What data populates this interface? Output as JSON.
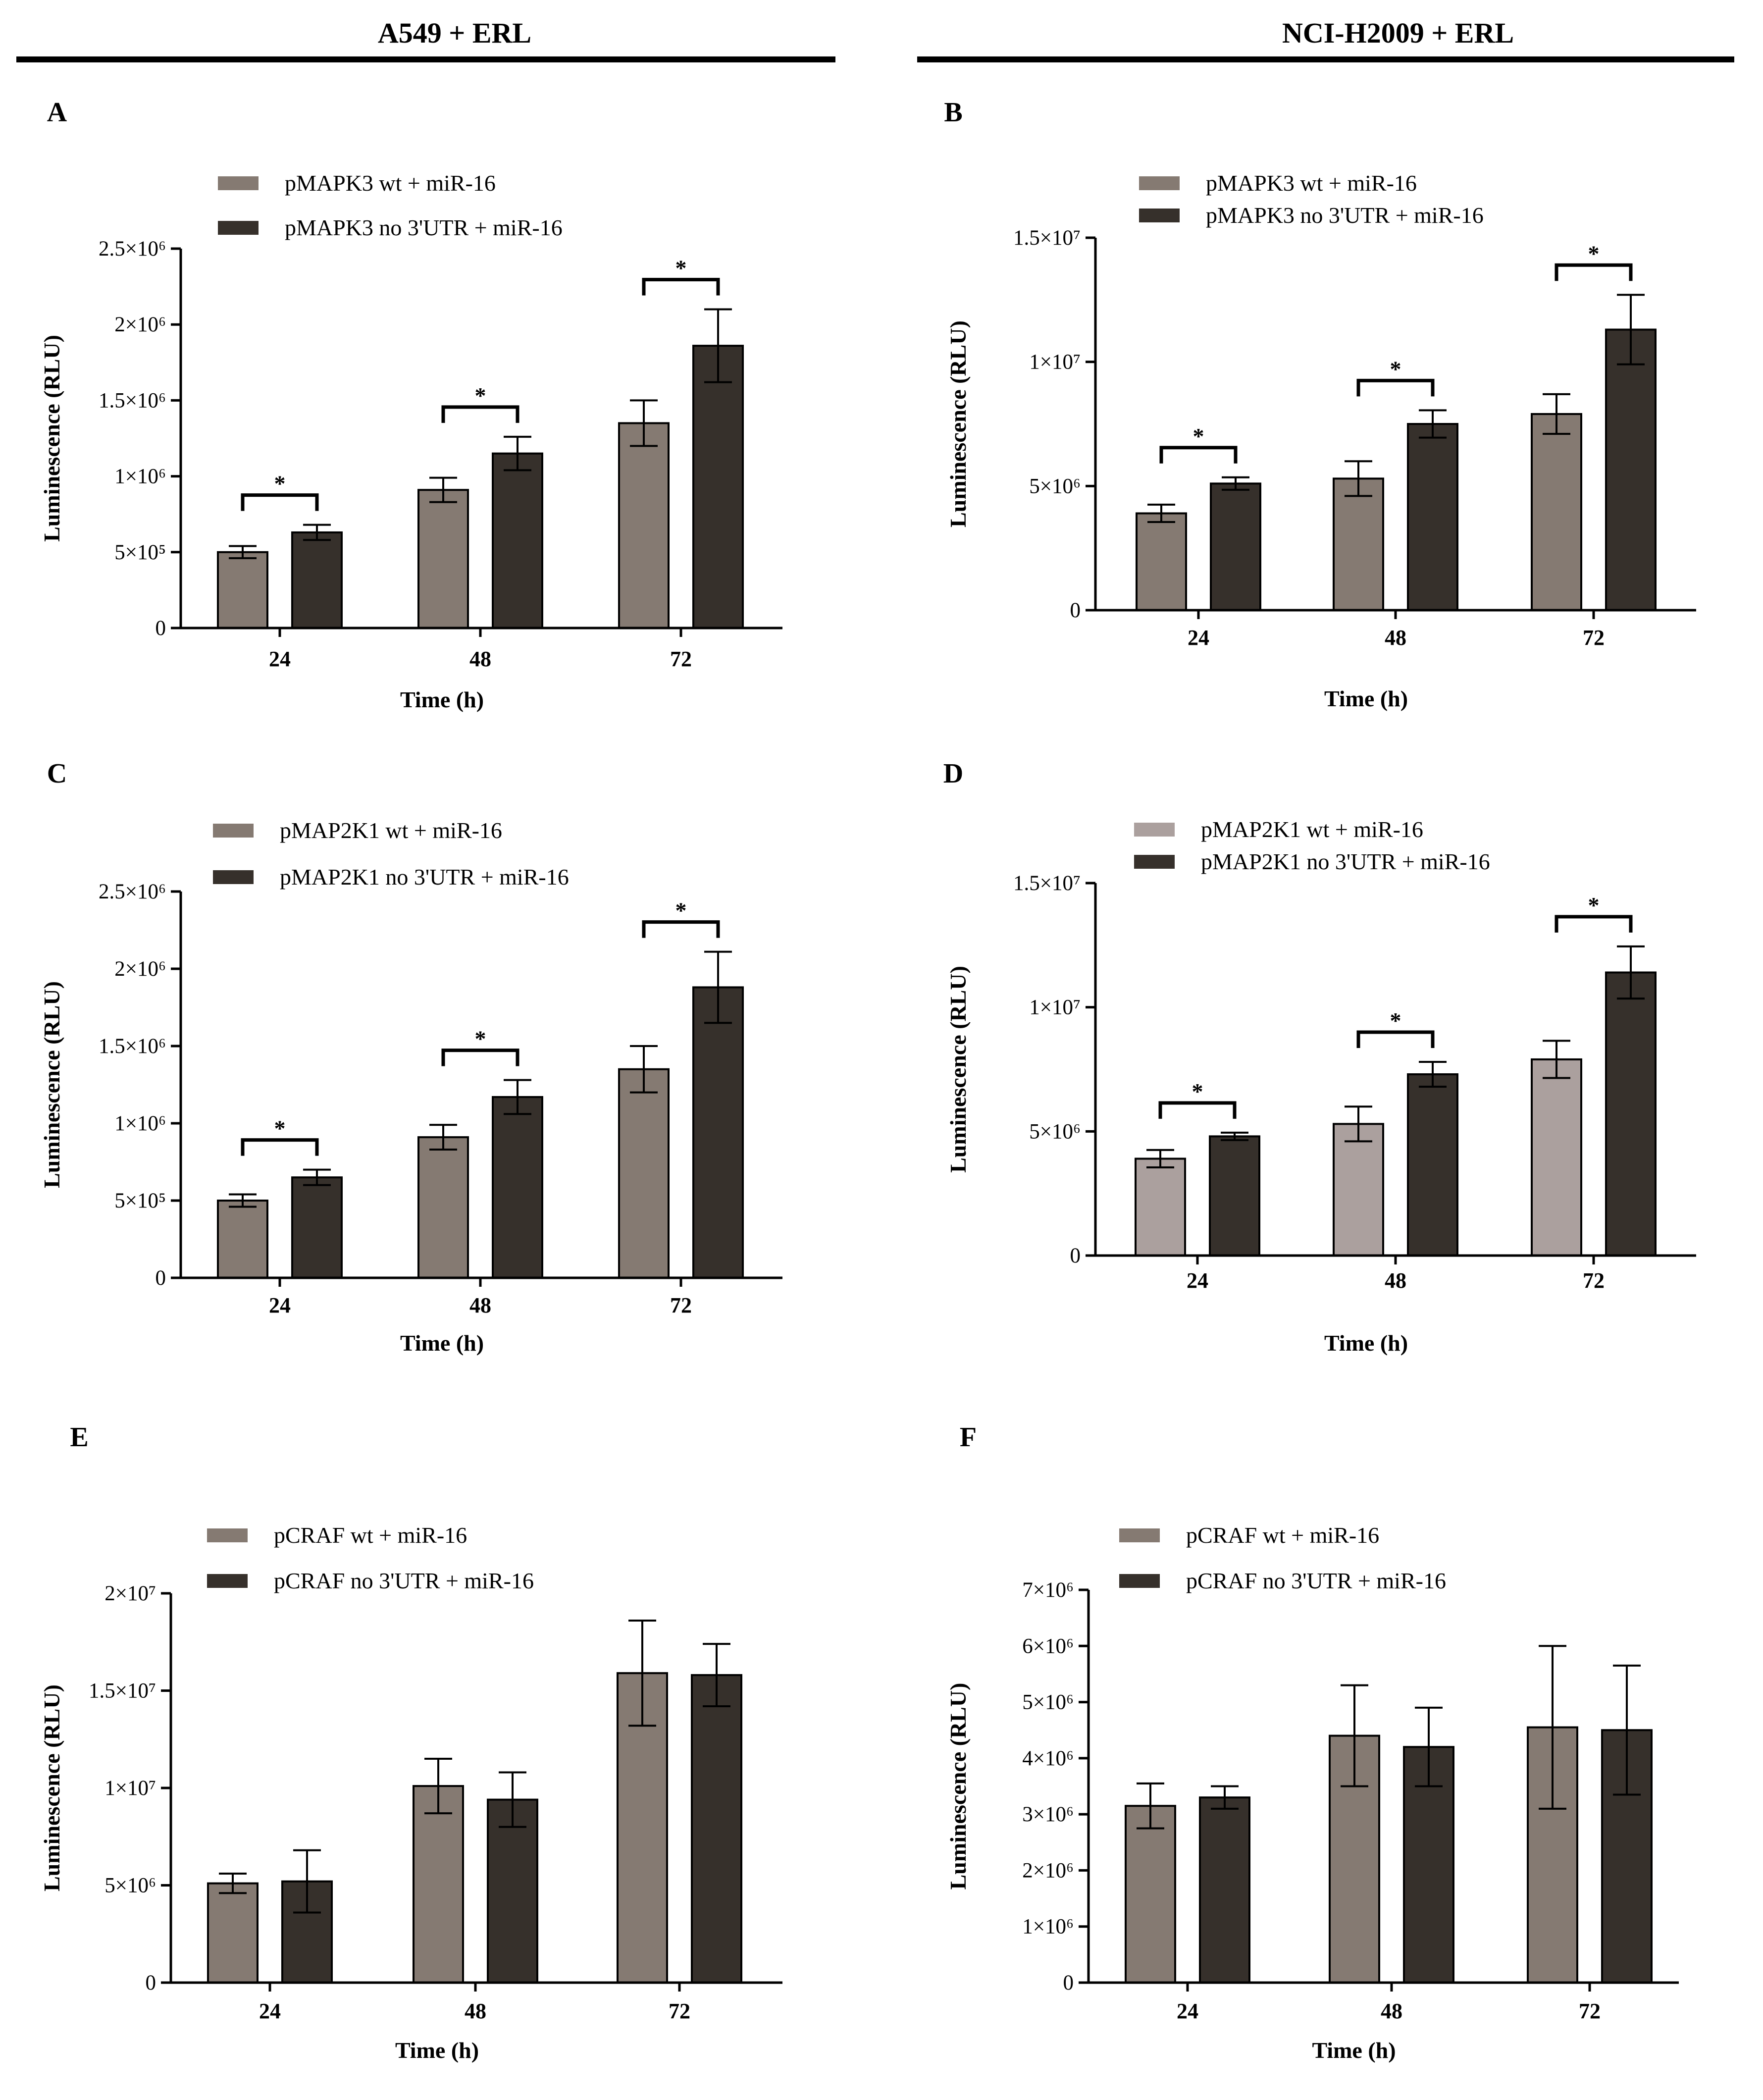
{
  "columns": [
    "A549 + ERL",
    "NCI-H2009 + ERL"
  ],
  "colors": {
    "wt": "#857a72",
    "noUTR": "#36302b",
    "wt_light": "#aba09e",
    "axis": "#000000"
  },
  "chart_data": [
    {
      "panel": "A",
      "type": "bar",
      "column": "A549 + ERL",
      "categories": [
        "24",
        "48",
        "72"
      ],
      "series": [
        {
          "name": "pMAPK3 wt + miR-16",
          "values": [
            500000,
            910000,
            1350000
          ],
          "errors": [
            40000,
            80000,
            150000
          ],
          "color": "wt"
        },
        {
          "name": "pMAPK3 no 3'UTR + miR-16",
          "values": [
            630000,
            1150000,
            1860000
          ],
          "errors": [
            50000,
            110000,
            240000
          ],
          "color": "noUTR"
        }
      ],
      "significance": [
        "*",
        "*",
        "*"
      ],
      "xlabel": "Time (h)",
      "ylabel": "Luminescence (RLU)",
      "ylim": [
        0,
        2500000
      ],
      "yticks": [
        {
          "v": 0,
          "label": "0"
        },
        {
          "v": 500000,
          "label": "5×10⁵"
        },
        {
          "v": 1000000,
          "label": "1×10⁶"
        },
        {
          "v": 1500000,
          "label": "1.5×10⁶"
        },
        {
          "v": 2000000,
          "label": "2×10⁶"
        },
        {
          "v": 2500000,
          "label": "2.5×10⁶"
        }
      ]
    },
    {
      "panel": "B",
      "type": "bar",
      "column": "NCI-H2009 + ERL",
      "categories": [
        "24",
        "48",
        "72"
      ],
      "series": [
        {
          "name": "pMAPK3 wt + miR-16",
          "values": [
            3900000,
            5300000,
            7900000
          ],
          "errors": [
            350000,
            700000,
            800000
          ],
          "color": "wt"
        },
        {
          "name": "pMAPK3 no 3'UTR + miR-16",
          "values": [
            5100000,
            7500000,
            11300000
          ],
          "errors": [
            250000,
            550000,
            1400000
          ],
          "color": "noUTR"
        }
      ],
      "significance": [
        "*",
        "*",
        "*"
      ],
      "xlabel": "Time (h)",
      "ylabel": "Luminescence (RLU)",
      "ylim": [
        0,
        15000000
      ],
      "yticks": [
        {
          "v": 0,
          "label": "0"
        },
        {
          "v": 5000000,
          "label": "5×10⁶"
        },
        {
          "v": 10000000,
          "label": "1×10⁷"
        },
        {
          "v": 15000000,
          "label": "1.5×10⁷"
        }
      ]
    },
    {
      "panel": "C",
      "type": "bar",
      "column": "A549 + ERL",
      "categories": [
        "24",
        "48",
        "72"
      ],
      "series": [
        {
          "name": "pMAP2K1 wt + miR-16",
          "values": [
            500000,
            910000,
            1350000
          ],
          "errors": [
            40000,
            80000,
            150000
          ],
          "color": "wt"
        },
        {
          "name": "pMAP2K1 no 3'UTR + miR-16",
          "values": [
            650000,
            1170000,
            1880000
          ],
          "errors": [
            50000,
            110000,
            230000
          ],
          "color": "noUTR"
        }
      ],
      "significance": [
        "*",
        "*",
        "*"
      ],
      "xlabel": "Time (h)",
      "ylabel": "Luminescence (RLU)",
      "ylim": [
        0,
        2500000
      ],
      "yticks": [
        {
          "v": 0,
          "label": "0"
        },
        {
          "v": 500000,
          "label": "5×10⁵"
        },
        {
          "v": 1000000,
          "label": "1×10⁶"
        },
        {
          "v": 1500000,
          "label": "1.5×10⁶"
        },
        {
          "v": 2000000,
          "label": "2×10⁶"
        },
        {
          "v": 2500000,
          "label": "2.5×10⁶"
        }
      ]
    },
    {
      "panel": "D",
      "type": "bar",
      "column": "NCI-H2009 + ERL",
      "categories": [
        "24",
        "48",
        "72"
      ],
      "series": [
        {
          "name": "pMAP2K1 wt + miR-16",
          "values": [
            3900000,
            5300000,
            7900000
          ],
          "errors": [
            350000,
            700000,
            750000
          ],
          "color": "wt_light"
        },
        {
          "name": "pMAP2K1 no 3'UTR + miR-16",
          "values": [
            4800000,
            7300000,
            11400000
          ],
          "errors": [
            150000,
            500000,
            1050000
          ],
          "color": "noUTR"
        }
      ],
      "significance": [
        "*",
        "*",
        "*"
      ],
      "xlabel": "Time (h)",
      "ylabel": "Luminescence (RLU)",
      "ylim": [
        0,
        15000000
      ],
      "yticks": [
        {
          "v": 0,
          "label": "0"
        },
        {
          "v": 5000000,
          "label": "5×10⁶"
        },
        {
          "v": 10000000,
          "label": "1×10⁷"
        },
        {
          "v": 15000000,
          "label": "1.5×10⁷"
        }
      ]
    },
    {
      "panel": "E",
      "type": "bar",
      "column": "A549 + ERL",
      "categories": [
        "24",
        "48",
        "72"
      ],
      "series": [
        {
          "name": "pCRAF wt + miR-16",
          "values": [
            5100000,
            10100000,
            15900000
          ],
          "errors": [
            500000,
            1400000,
            2700000
          ],
          "color": "wt"
        },
        {
          "name": "pCRAF no 3'UTR + miR-16",
          "values": [
            5200000,
            9400000,
            15800000
          ],
          "errors": [
            1600000,
            1400000,
            1600000
          ],
          "color": "noUTR"
        }
      ],
      "significance": [],
      "xlabel": "Time (h)",
      "ylabel": "Luminescence (RLU)",
      "ylim": [
        0,
        20000000
      ],
      "yticks": [
        {
          "v": 0,
          "label": "0"
        },
        {
          "v": 5000000,
          "label": "5×10⁶"
        },
        {
          "v": 10000000,
          "label": "1×10⁷"
        },
        {
          "v": 15000000,
          "label": "1.5×10⁷"
        },
        {
          "v": 20000000,
          "label": "2×10⁷"
        }
      ]
    },
    {
      "panel": "F",
      "type": "bar",
      "column": "NCI-H2009 + ERL",
      "categories": [
        "24",
        "48",
        "72"
      ],
      "series": [
        {
          "name": "pCRAF wt + miR-16",
          "values": [
            3150000,
            4400000,
            4550000
          ],
          "errors": [
            400000,
            900000,
            1450000
          ],
          "color": "wt"
        },
        {
          "name": "pCRAF no 3'UTR + miR-16",
          "values": [
            3300000,
            4200000,
            4500000
          ],
          "errors": [
            200000,
            700000,
            1150000
          ],
          "color": "noUTR"
        }
      ],
      "significance": [],
      "xlabel": "Time (h)",
      "ylabel": "Luminescence (RLU)",
      "ylim": [
        0,
        7000000
      ],
      "yticks": [
        {
          "v": 0,
          "label": "0"
        },
        {
          "v": 1000000,
          "label": "1×10⁶"
        },
        {
          "v": 2000000,
          "label": "2×10⁶"
        },
        {
          "v": 3000000,
          "label": "3×10⁶"
        },
        {
          "v": 4000000,
          "label": "4×10⁶"
        },
        {
          "v": 5000000,
          "label": "5×10⁶"
        },
        {
          "v": 6000000,
          "label": "6×10⁶"
        },
        {
          "v": 7000000,
          "label": "7×10⁶"
        }
      ]
    }
  ]
}
